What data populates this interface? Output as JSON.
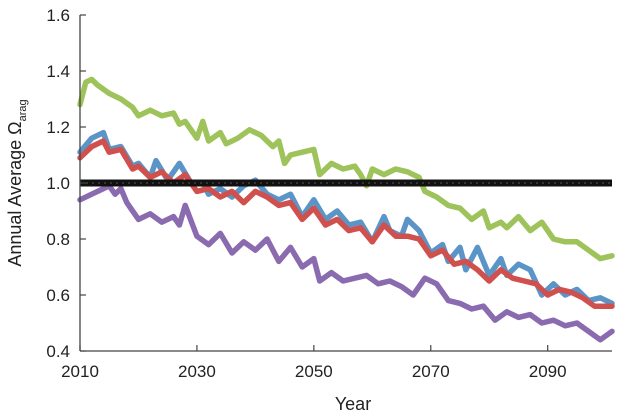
{
  "chart_data": {
    "type": "line",
    "xlabel": "Year",
    "ylabel": {
      "main": "Annual Average Ω",
      "sub": "arag"
    },
    "xlim": [
      2010,
      2101
    ],
    "ylim": [
      0.4,
      1.6
    ],
    "x_ticks": [
      2010,
      2030,
      2050,
      2070,
      2090
    ],
    "y_ticks": [
      0.4,
      0.6,
      0.8,
      1.0,
      1.2,
      1.4,
      1.6
    ],
    "y_tick_labels": [
      "0.4",
      "0.6",
      "0.8",
      "1.0",
      "1.2",
      "1.4",
      "1.6"
    ],
    "reference_line": {
      "y": 1.0,
      "color": "#111111"
    },
    "grid": false,
    "series": [
      {
        "color": "#9dc35a",
        "x": [
          2010,
          2011,
          2012,
          2013,
          2015,
          2017,
          2019,
          2020,
          2022,
          2024,
          2026,
          2027,
          2028,
          2030,
          2031,
          2032,
          2034,
          2035,
          2037,
          2039,
          2041,
          2043,
          2044,
          2045,
          2046,
          2048,
          2050,
          2051,
          2053,
          2055,
          2057,
          2058,
          2059,
          2060,
          2062,
          2064,
          2066,
          2068,
          2069,
          2071,
          2073,
          2075,
          2077,
          2079,
          2080,
          2082,
          2083,
          2085,
          2087,
          2089,
          2091,
          2093,
          2095,
          2097,
          2099,
          2101
        ],
        "y": [
          1.28,
          1.36,
          1.37,
          1.35,
          1.32,
          1.3,
          1.27,
          1.24,
          1.26,
          1.24,
          1.25,
          1.21,
          1.22,
          1.16,
          1.22,
          1.15,
          1.18,
          1.14,
          1.16,
          1.19,
          1.17,
          1.13,
          1.15,
          1.07,
          1.1,
          1.11,
          1.12,
          1.03,
          1.07,
          1.05,
          1.06,
          1.03,
          0.99,
          1.05,
          1.03,
          1.05,
          1.04,
          1.02,
          0.97,
          0.95,
          0.92,
          0.91,
          0.87,
          0.9,
          0.84,
          0.86,
          0.84,
          0.88,
          0.83,
          0.86,
          0.8,
          0.79,
          0.79,
          0.76,
          0.73,
          0.74
        ]
      },
      {
        "color": "#5b95c8",
        "x": [
          2010,
          2012,
          2014,
          2015,
          2017,
          2019,
          2020,
          2022,
          2023,
          2025,
          2027,
          2029,
          2031,
          2032,
          2034,
          2036,
          2038,
          2040,
          2042,
          2044,
          2046,
          2048,
          2050,
          2052,
          2054,
          2056,
          2058,
          2060,
          2062,
          2063,
          2065,
          2066,
          2068,
          2070,
          2072,
          2073,
          2075,
          2076,
          2078,
          2080,
          2082,
          2083,
          2085,
          2087,
          2089,
          2091,
          2093,
          2095,
          2097,
          2099,
          2101
        ],
        "y": [
          1.11,
          1.16,
          1.18,
          1.12,
          1.13,
          1.06,
          1.07,
          1.02,
          1.08,
          1.01,
          1.07,
          1.0,
          1.0,
          0.96,
          0.98,
          0.95,
          0.99,
          1.01,
          0.96,
          0.94,
          0.96,
          0.88,
          0.94,
          0.87,
          0.9,
          0.85,
          0.86,
          0.79,
          0.88,
          0.83,
          0.81,
          0.87,
          0.83,
          0.75,
          0.78,
          0.72,
          0.77,
          0.69,
          0.77,
          0.67,
          0.73,
          0.67,
          0.71,
          0.69,
          0.6,
          0.64,
          0.6,
          0.62,
          0.58,
          0.59,
          0.57
        ]
      },
      {
        "color": "#d0504d",
        "x": [
          2010,
          2012,
          2014,
          2015,
          2017,
          2019,
          2020,
          2022,
          2024,
          2026,
          2028,
          2030,
          2032,
          2034,
          2036,
          2038,
          2040,
          2042,
          2044,
          2046,
          2048,
          2050,
          2052,
          2054,
          2056,
          2058,
          2060,
          2062,
          2064,
          2066,
          2068,
          2070,
          2072,
          2074,
          2076,
          2078,
          2080,
          2082,
          2084,
          2086,
          2088,
          2090,
          2092,
          2094,
          2096,
          2098,
          2101
        ],
        "y": [
          1.09,
          1.13,
          1.15,
          1.11,
          1.12,
          1.05,
          1.06,
          1.02,
          1.04,
          1.0,
          1.03,
          0.97,
          0.98,
          0.95,
          0.97,
          0.93,
          0.97,
          0.95,
          0.92,
          0.93,
          0.87,
          0.91,
          0.85,
          0.87,
          0.83,
          0.84,
          0.79,
          0.85,
          0.81,
          0.81,
          0.8,
          0.74,
          0.76,
          0.71,
          0.72,
          0.69,
          0.65,
          0.69,
          0.66,
          0.65,
          0.64,
          0.6,
          0.62,
          0.61,
          0.59,
          0.56,
          0.56
        ]
      },
      {
        "color": "#8a6bb0",
        "x": [
          2010,
          2012,
          2014,
          2015,
          2016,
          2017,
          2018,
          2020,
          2022,
          2024,
          2026,
          2027,
          2028,
          2030,
          2032,
          2034,
          2036,
          2038,
          2040,
          2042,
          2044,
          2046,
          2048,
          2050,
          2051,
          2053,
          2055,
          2057,
          2059,
          2061,
          2063,
          2065,
          2067,
          2069,
          2071,
          2073,
          2075,
          2077,
          2079,
          2081,
          2083,
          2085,
          2087,
          2089,
          2091,
          2093,
          2095,
          2097,
          2099,
          2101
        ],
        "y": [
          0.94,
          0.96,
          0.98,
          0.99,
          0.96,
          0.98,
          0.93,
          0.87,
          0.89,
          0.86,
          0.88,
          0.85,
          0.92,
          0.81,
          0.78,
          0.82,
          0.75,
          0.79,
          0.76,
          0.8,
          0.72,
          0.77,
          0.7,
          0.73,
          0.65,
          0.68,
          0.65,
          0.66,
          0.67,
          0.64,
          0.65,
          0.63,
          0.6,
          0.66,
          0.64,
          0.58,
          0.57,
          0.55,
          0.56,
          0.51,
          0.54,
          0.52,
          0.53,
          0.5,
          0.51,
          0.49,
          0.5,
          0.47,
          0.44,
          0.47
        ]
      }
    ]
  }
}
